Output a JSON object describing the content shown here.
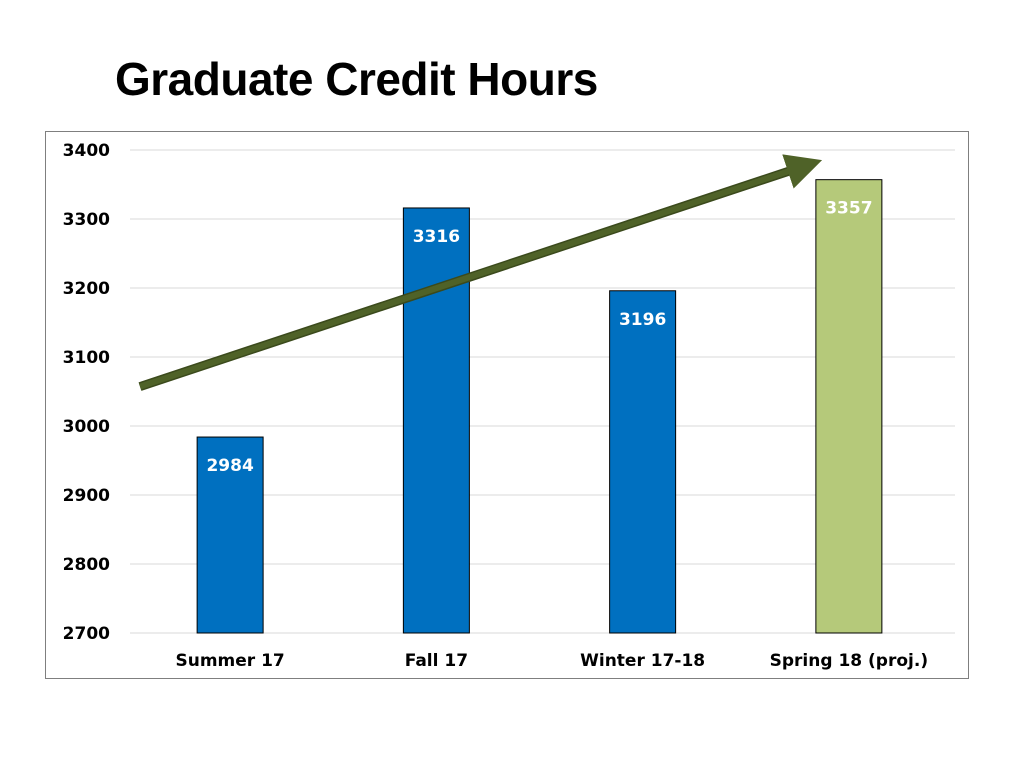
{
  "title": "Graduate Credit Hours",
  "chart_data": {
    "type": "bar",
    "title": "",
    "xlabel": "",
    "ylabel": "",
    "categories": [
      "Summer 17",
      "Fall 17",
      "Winter 17-18",
      "Spring 18 (proj.)"
    ],
    "values": [
      2984,
      3316,
      3196,
      3357
    ],
    "data_labels": [
      "2984",
      "3316",
      "3196",
      "3357"
    ],
    "ylim": [
      2700,
      3400
    ],
    "yticks": [
      2700,
      2800,
      2900,
      3000,
      3100,
      3200,
      3300,
      3400
    ],
    "bar_colors": [
      "#0070c0",
      "#0070c0",
      "#0070c0",
      "#b5c97a"
    ],
    "grid": true,
    "legend": "none",
    "trend_arrow": {
      "color": "#4f6228",
      "direction": "up",
      "start_value": 3060,
      "end_value": 3380
    }
  }
}
